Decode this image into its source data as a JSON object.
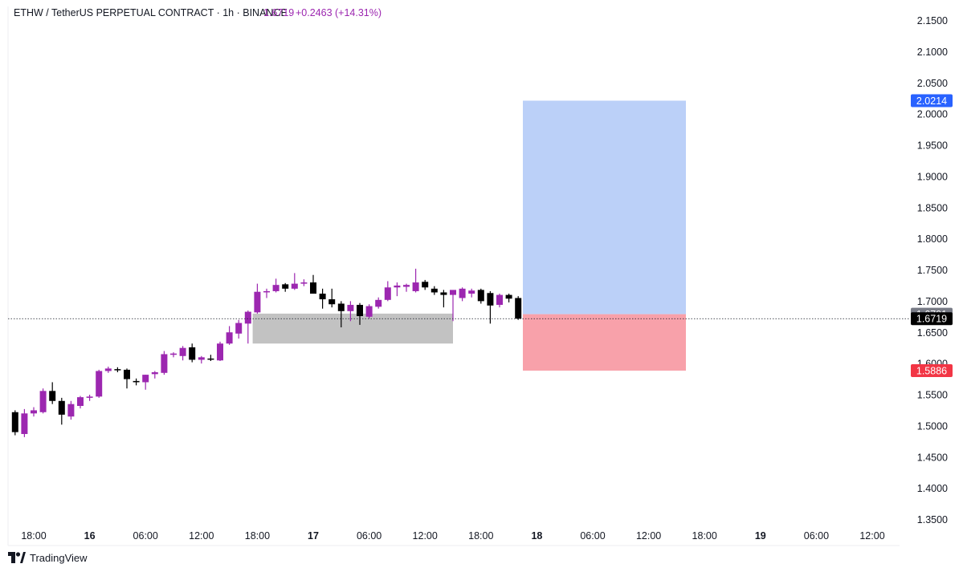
{
  "header": {
    "symbol": "ETHW / TetherUS PERPETUAL CONTRACT · 1h · BINANCE",
    "last_price": "1.6719",
    "change": "+0.2463 (+14.31%)"
  },
  "brand": {
    "name": "TradingView",
    "icon": "tradingview-logo-icon"
  },
  "colors": {
    "up": "#9c27b0",
    "down": "#000000",
    "target_zone": "#bbd0f8",
    "stop_zone": "#f8a1aa",
    "range_box": "#c2c2c2",
    "target_badge": "#2962ff",
    "stop_badge": "#f23645",
    "entry_badge": "#787b86",
    "last_badge": "#000000"
  },
  "chart_data": {
    "type": "candlestick",
    "title": "ETHW / TetherUS PERPETUAL CONTRACT · 1h · BINANCE",
    "ylim": [
      1.32,
      2.17
    ],
    "y_ticks": [
      "2.1500",
      "2.1000",
      "2.0500",
      "2.0000",
      "1.9500",
      "1.9000",
      "1.8500",
      "1.8000",
      "1.7500",
      "1.7000",
      "1.6500",
      "1.6000",
      "1.5500",
      "1.5000",
      "1.4500",
      "1.4000",
      "1.3500"
    ],
    "x_ticks": [
      {
        "label": "18:00",
        "bold": false,
        "t": 0
      },
      {
        "label": "16",
        "bold": true,
        "t": 6
      },
      {
        "label": "06:00",
        "bold": false,
        "t": 12
      },
      {
        "label": "12:00",
        "bold": false,
        "t": 18
      },
      {
        "label": "18:00",
        "bold": false,
        "t": 24
      },
      {
        "label": "17",
        "bold": true,
        "t": 30
      },
      {
        "label": "06:00",
        "bold": false,
        "t": 36
      },
      {
        "label": "12:00",
        "bold": false,
        "t": 42
      },
      {
        "label": "18:00",
        "bold": false,
        "t": 48
      },
      {
        "label": "18",
        "bold": true,
        "t": 54
      },
      {
        "label": "06:00",
        "bold": false,
        "t": 60
      },
      {
        "label": "12:00",
        "bold": false,
        "t": 66
      },
      {
        "label": "18:00",
        "bold": false,
        "t": 72
      },
      {
        "label": "19",
        "bold": true,
        "t": 78
      },
      {
        "label": "06:00",
        "bold": false,
        "t": 84
      },
      {
        "label": "12:00",
        "bold": false,
        "t": 90
      }
    ],
    "candles": [
      {
        "t": -2,
        "o": 1.522,
        "h": 1.525,
        "l": 1.485,
        "c": 1.49
      },
      {
        "t": -1,
        "o": 1.487,
        "h": 1.527,
        "l": 1.482,
        "c": 1.52
      },
      {
        "t": 0,
        "o": 1.52,
        "h": 1.53,
        "l": 1.515,
        "c": 1.525
      },
      {
        "t": 1,
        "o": 1.522,
        "h": 1.56,
        "l": 1.52,
        "c": 1.556
      },
      {
        "t": 2,
        "o": 1.556,
        "h": 1.57,
        "l": 1.535,
        "c": 1.54
      },
      {
        "t": 3,
        "o": 1.54,
        "h": 1.545,
        "l": 1.502,
        "c": 1.518
      },
      {
        "t": 4,
        "o": 1.515,
        "h": 1.54,
        "l": 1.51,
        "c": 1.535
      },
      {
        "t": 5,
        "o": 1.532,
        "h": 1.548,
        "l": 1.528,
        "c": 1.546
      },
      {
        "t": 6,
        "o": 1.545,
        "h": 1.55,
        "l": 1.54,
        "c": 1.547
      },
      {
        "t": 7,
        "o": 1.547,
        "h": 1.59,
        "l": 1.545,
        "c": 1.588
      },
      {
        "t": 8,
        "o": 1.588,
        "h": 1.595,
        "l": 1.585,
        "c": 1.592
      },
      {
        "t": 9,
        "o": 1.591,
        "h": 1.594,
        "l": 1.586,
        "c": 1.59
      },
      {
        "t": 10,
        "o": 1.59,
        "h": 1.592,
        "l": 1.56,
        "c": 1.575
      },
      {
        "t": 11,
        "o": 1.572,
        "h": 1.576,
        "l": 1.565,
        "c": 1.57
      },
      {
        "t": 12,
        "o": 1.57,
        "h": 1.582,
        "l": 1.558,
        "c": 1.582
      },
      {
        "t": 13,
        "o": 1.583,
        "h": 1.588,
        "l": 1.576,
        "c": 1.586
      },
      {
        "t": 14,
        "o": 1.585,
        "h": 1.62,
        "l": 1.582,
        "c": 1.615
      },
      {
        "t": 15,
        "o": 1.614,
        "h": 1.618,
        "l": 1.61,
        "c": 1.616
      },
      {
        "t": 16,
        "o": 1.612,
        "h": 1.628,
        "l": 1.605,
        "c": 1.625
      },
      {
        "t": 17,
        "o": 1.626,
        "h": 1.632,
        "l": 1.602,
        "c": 1.606
      },
      {
        "t": 18,
        "o": 1.606,
        "h": 1.612,
        "l": 1.6,
        "c": 1.61
      },
      {
        "t": 19,
        "o": 1.608,
        "h": 1.614,
        "l": 1.604,
        "c": 1.607
      },
      {
        "t": 20,
        "o": 1.605,
        "h": 1.635,
        "l": 1.604,
        "c": 1.632
      },
      {
        "t": 21,
        "o": 1.632,
        "h": 1.66,
        "l": 1.63,
        "c": 1.65
      },
      {
        "t": 22,
        "o": 1.648,
        "h": 1.67,
        "l": 1.64,
        "c": 1.665
      },
      {
        "t": 23,
        "o": 1.664,
        "h": 1.685,
        "l": 1.632,
        "c": 1.683
      },
      {
        "t": 24,
        "o": 1.682,
        "h": 1.728,
        "l": 1.68,
        "c": 1.715
      },
      {
        "t": 25,
        "o": 1.715,
        "h": 1.72,
        "l": 1.705,
        "c": 1.716
      },
      {
        "t": 26,
        "o": 1.716,
        "h": 1.736,
        "l": 1.714,
        "c": 1.726
      },
      {
        "t": 27,
        "o": 1.727,
        "h": 1.729,
        "l": 1.715,
        "c": 1.72
      },
      {
        "t": 28,
        "o": 1.72,
        "h": 1.745,
        "l": 1.718,
        "c": 1.728
      },
      {
        "t": 29,
        "o": 1.728,
        "h": 1.735,
        "l": 1.724,
        "c": 1.73
      },
      {
        "t": 30,
        "o": 1.73,
        "h": 1.742,
        "l": 1.712,
        "c": 1.712
      },
      {
        "t": 31,
        "o": 1.712,
        "h": 1.72,
        "l": 1.688,
        "c": 1.703
      },
      {
        "t": 32,
        "o": 1.703,
        "h": 1.72,
        "l": 1.69,
        "c": 1.695
      },
      {
        "t": 33,
        "o": 1.696,
        "h": 1.7,
        "l": 1.658,
        "c": 1.684
      },
      {
        "t": 34,
        "o": 1.684,
        "h": 1.7,
        "l": 1.668,
        "c": 1.694
      },
      {
        "t": 35,
        "o": 1.694,
        "h": 1.697,
        "l": 1.662,
        "c": 1.676
      },
      {
        "t": 36,
        "o": 1.675,
        "h": 1.695,
        "l": 1.672,
        "c": 1.692
      },
      {
        "t": 37,
        "o": 1.691,
        "h": 1.706,
        "l": 1.688,
        "c": 1.702
      },
      {
        "t": 38,
        "o": 1.702,
        "h": 1.732,
        "l": 1.7,
        "c": 1.722
      },
      {
        "t": 39,
        "o": 1.722,
        "h": 1.73,
        "l": 1.708,
        "c": 1.725
      },
      {
        "t": 40,
        "o": 1.723,
        "h": 1.728,
        "l": 1.715,
        "c": 1.726
      },
      {
        "t": 41,
        "o": 1.716,
        "h": 1.752,
        "l": 1.714,
        "c": 1.73
      },
      {
        "t": 42,
        "o": 1.731,
        "h": 1.734,
        "l": 1.718,
        "c": 1.722
      },
      {
        "t": 43,
        "o": 1.72,
        "h": 1.724,
        "l": 1.71,
        "c": 1.714
      },
      {
        "t": 44,
        "o": 1.714,
        "h": 1.718,
        "l": 1.69,
        "c": 1.71
      },
      {
        "t": 45,
        "o": 1.71,
        "h": 1.715,
        "l": 1.668,
        "c": 1.718
      },
      {
        "t": 46,
        "o": 1.705,
        "h": 1.722,
        "l": 1.7,
        "c": 1.72
      },
      {
        "t": 47,
        "o": 1.712,
        "h": 1.72,
        "l": 1.706,
        "c": 1.717
      },
      {
        "t": 48,
        "o": 1.718,
        "h": 1.72,
        "l": 1.696,
        "c": 1.7
      },
      {
        "t": 49,
        "o": 1.713,
        "h": 1.716,
        "l": 1.664,
        "c": 1.693
      },
      {
        "t": 50,
        "o": 1.694,
        "h": 1.712,
        "l": 1.69,
        "c": 1.71
      },
      {
        "t": 51,
        "o": 1.71,
        "h": 1.712,
        "l": 1.698,
        "c": 1.704
      },
      {
        "t": 52,
        "o": 1.705,
        "h": 1.708,
        "l": 1.67,
        "c": 1.672
      }
    ],
    "range_box": {
      "t_start": 23.5,
      "t_end": 45.0,
      "y_top": 1.68,
      "y_bottom": 1.632
    },
    "position": {
      "t_start": 52.5,
      "t_end": 70.0,
      "target": 2.0214,
      "entry": 1.6791,
      "stop": 1.5886
    },
    "last_price_line": 1.6719,
    "price_labels": [
      {
        "value": "2.0214",
        "y": 2.0214,
        "kind": "target"
      },
      {
        "value": "1.6791",
        "y": 1.6791,
        "kind": "entry"
      },
      {
        "value": "1.6719",
        "y": 1.6719,
        "kind": "last"
      },
      {
        "value": "1.5886",
        "y": 1.5886,
        "kind": "stop"
      }
    ],
    "grid": false
  }
}
